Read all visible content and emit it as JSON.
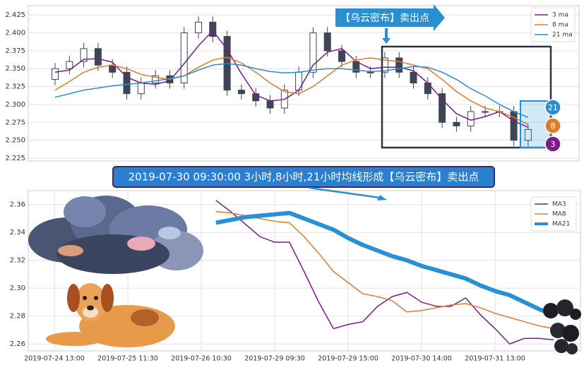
{
  "chart_data": [
    {
      "type": "candlestick",
      "banner": "【乌云密布】卖出点",
      "end_labels": [
        "21",
        "8",
        "3"
      ],
      "open": [
        2.335,
        2.35,
        2.36,
        2.378,
        2.355,
        2.345,
        2.315,
        2.33,
        2.34,
        2.33,
        2.4,
        2.415,
        2.395,
        2.32,
        2.315,
        2.305,
        2.295,
        2.32,
        2.345,
        2.4,
        2.375,
        2.36,
        2.345,
        2.345,
        2.365,
        2.345,
        2.33,
        2.315,
        2.275,
        2.27,
        2.29,
        2.29,
        2.29,
        2.25
      ],
      "high": [
        2.358,
        2.368,
        2.386,
        2.386,
        2.363,
        2.353,
        2.338,
        2.348,
        2.348,
        2.408,
        2.423,
        2.423,
        2.403,
        2.328,
        2.323,
        2.313,
        2.328,
        2.353,
        2.408,
        2.408,
        2.383,
        2.368,
        2.353,
        2.373,
        2.373,
        2.353,
        2.338,
        2.323,
        2.283,
        2.298,
        2.298,
        2.298,
        2.298,
        2.273
      ],
      "low": [
        2.327,
        2.342,
        2.352,
        2.347,
        2.337,
        2.307,
        2.307,
        2.322,
        2.322,
        2.322,
        2.392,
        2.387,
        2.312,
        2.307,
        2.297,
        2.287,
        2.287,
        2.312,
        2.337,
        2.367,
        2.352,
        2.337,
        2.337,
        2.337,
        2.337,
        2.322,
        2.307,
        2.267,
        2.262,
        2.262,
        2.282,
        2.282,
        2.242,
        2.242
      ],
      "close": [
        2.35,
        2.36,
        2.378,
        2.355,
        2.345,
        2.315,
        2.33,
        2.34,
        2.33,
        2.4,
        2.415,
        2.395,
        2.32,
        2.315,
        2.305,
        2.295,
        2.32,
        2.345,
        2.4,
        2.375,
        2.36,
        2.345,
        2.345,
        2.365,
        2.345,
        2.33,
        2.315,
        2.275,
        2.27,
        2.29,
        2.29,
        2.29,
        2.25,
        2.265
      ],
      "up_color": "#ffffff",
      "down_color": "#3d4556",
      "series": [
        {
          "name": "3 ma",
          "color": "#7b1c8a",
          "values": [
            2.345,
            2.348,
            2.363,
            2.364,
            2.359,
            2.338,
            2.33,
            2.328,
            2.333,
            2.357,
            2.382,
            2.403,
            2.377,
            2.343,
            2.313,
            2.305,
            2.307,
            2.32,
            2.355,
            2.373,
            2.378,
            2.36,
            2.35,
            2.352,
            2.352,
            2.347,
            2.33,
            2.307,
            2.287,
            2.278,
            2.283,
            2.29,
            2.277,
            2.268
          ]
        },
        {
          "name": "8 ma",
          "color": "#e07b2a",
          "values": [
            2.32,
            2.332,
            2.345,
            2.352,
            2.355,
            2.35,
            2.342,
            2.338,
            2.335,
            2.34,
            2.352,
            2.362,
            2.366,
            2.358,
            2.345,
            2.33,
            2.318,
            2.315,
            2.325,
            2.34,
            2.355,
            2.362,
            2.365,
            2.362,
            2.36,
            2.355,
            2.35,
            2.335,
            2.318,
            2.305,
            2.295,
            2.29,
            2.282,
            2.272
          ]
        },
        {
          "name": "21 ma",
          "color": "#2a8fd0",
          "values": [
            2.31,
            2.315,
            2.32,
            2.323,
            2.326,
            2.328,
            2.33,
            2.333,
            2.336,
            2.34,
            2.348,
            2.355,
            2.357,
            2.355,
            2.35,
            2.346,
            2.344,
            2.345,
            2.348,
            2.35,
            2.35,
            2.348,
            2.346,
            2.347,
            2.35,
            2.353,
            2.352,
            2.345,
            2.335,
            2.322,
            2.312,
            2.3,
            2.29,
            2.282
          ]
        }
      ],
      "ylim": [
        2.221,
        2.438
      ],
      "yticks": [
        2.225,
        {
          "value": 2.25,
          "label": "2.250"
        },
        2.275,
        {
          "value": 2.3,
          "label": "2.300"
        },
        2.325,
        {
          "value": 2.35,
          "label": "2.350"
        },
        2.375,
        {
          "value": 2.4,
          "label": "2.400"
        },
        2.425
      ],
      "grid": true,
      "legend": "upper right"
    },
    {
      "type": "line",
      "title": "2019-07-30 09:30:00 3小时,8小时,21小时均线形成【乌云密布】卖出点",
      "categories": [
        "2019-07-24 13:00",
        null,
        null,
        null,
        null,
        "2019-07-25 11:30",
        null,
        null,
        null,
        null,
        "2019-07-26 10:30",
        null,
        null,
        null,
        null,
        "2019-07-29 09:30",
        null,
        null,
        null,
        null,
        "2019-07-29 15:00",
        null,
        null,
        null,
        null,
        "2019-07-30 14:00",
        null,
        null,
        null,
        null,
        "2019-07-31 13:00",
        null,
        null,
        null,
        null
      ],
      "series": [
        {
          "name": "MA3",
          "color": "#7b1c8a",
          "width": 1.5,
          "values": [
            null,
            null,
            null,
            null,
            null,
            null,
            null,
            null,
            null,
            null,
            null,
            2.363,
            2.355,
            2.346,
            2.337,
            2.333,
            2.333,
            2.312,
            2.29,
            2.271,
            2.274,
            2.276,
            2.287,
            2.294,
            2.297,
            2.29,
            2.287,
            2.287,
            2.293,
            2.281,
            2.271,
            2.26,
            2.264,
            2.264,
            2.263
          ]
        },
        {
          "name": "MA8",
          "color": "#e07b2a",
          "width": 1.5,
          "values": [
            null,
            null,
            null,
            null,
            null,
            null,
            null,
            null,
            null,
            null,
            null,
            2.355,
            2.354,
            2.352,
            2.35,
            2.348,
            2.347,
            2.337,
            2.325,
            2.312,
            2.304,
            2.296,
            2.294,
            2.291,
            2.283,
            2.284,
            2.286,
            2.288,
            2.289,
            2.286,
            2.282,
            2.279,
            2.276,
            2.273,
            2.271
          ]
        },
        {
          "name": "MA21",
          "color": "#2a90d6",
          "width": 6,
          "values": [
            null,
            null,
            null,
            null,
            null,
            null,
            null,
            null,
            null,
            null,
            null,
            2.347,
            2.349,
            2.351,
            2.352,
            2.353,
            2.354,
            2.35,
            2.346,
            2.342,
            2.336,
            2.331,
            2.327,
            2.323,
            2.32,
            2.316,
            2.313,
            2.31,
            2.307,
            2.302,
            2.298,
            2.295,
            2.29,
            2.285,
            2.281
          ]
        }
      ],
      "ylim": [
        2.255,
        2.37
      ],
      "yticks": [
        2.26,
        2.28,
        {
          "value": 2.3,
          "label": "2.30"
        },
        2.32,
        2.34,
        2.36
      ],
      "grid": true,
      "legend": "upper right"
    }
  ]
}
